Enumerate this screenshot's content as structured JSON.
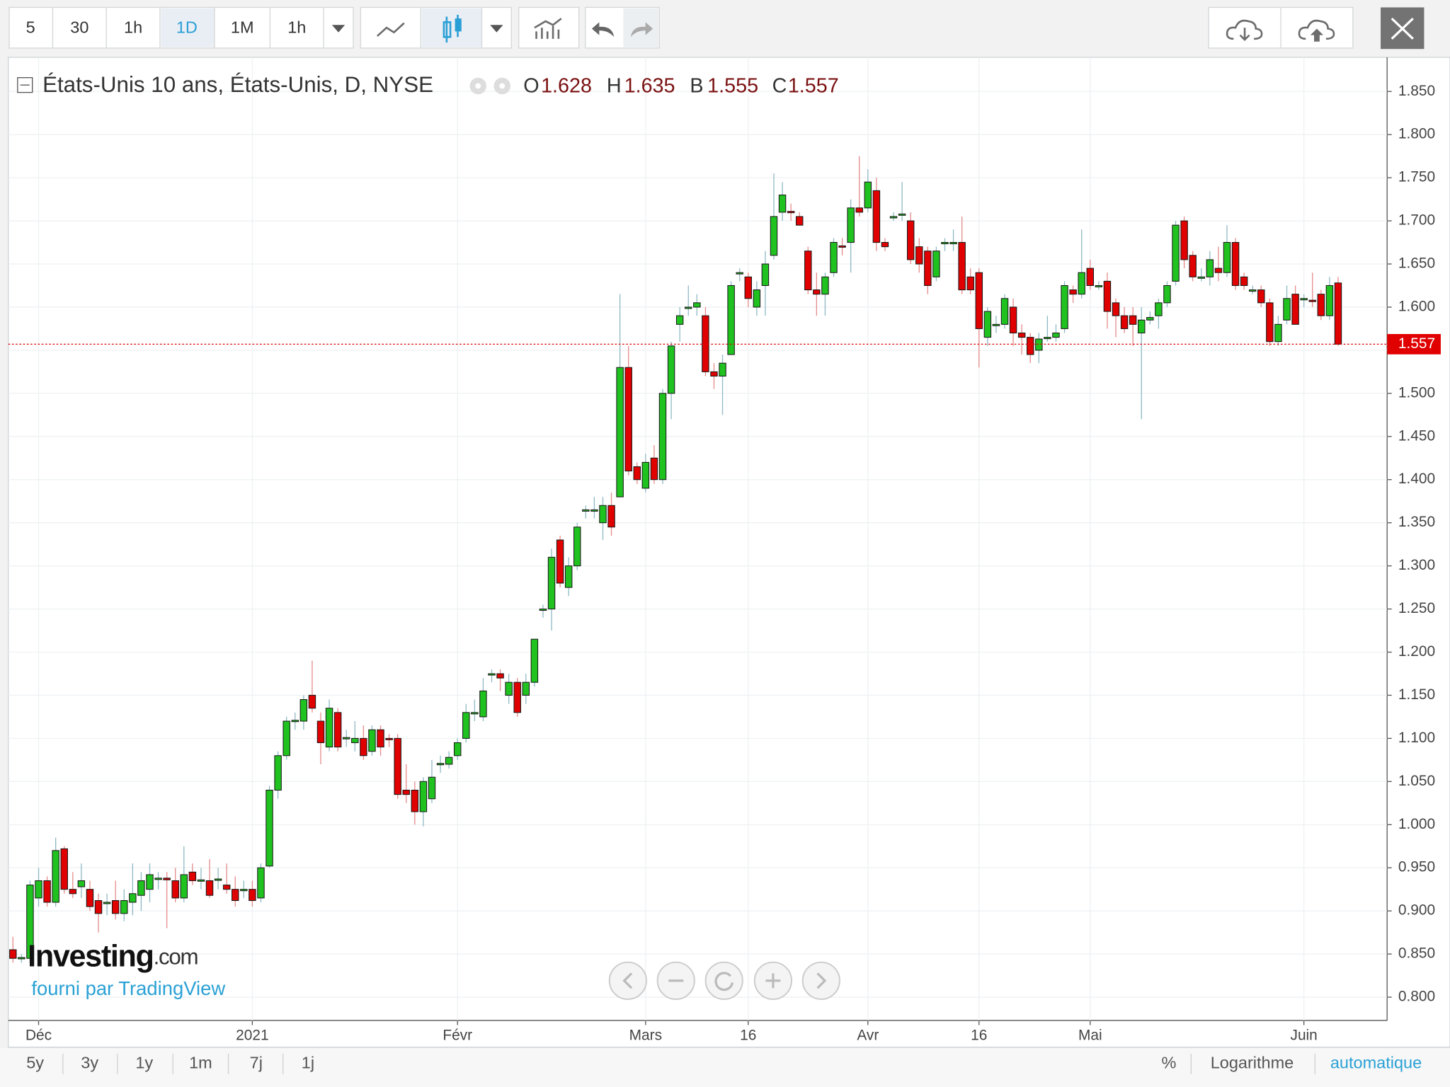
{
  "toolbar": {
    "intervals": [
      "5",
      "30",
      "1h",
      "1D",
      "1M",
      "1h"
    ]
  },
  "legend": {
    "title": "États-Unis 10 ans, États-Unis, D, NYSE",
    "ohlc": [
      {
        "label": "O",
        "value": 1.628
      },
      {
        "label": "H",
        "value": 1.635
      },
      {
        "label": "B",
        "value": 1.555
      },
      {
        "label": "C",
        "value": 1.557
      }
    ]
  },
  "branding": {
    "logo": "Investing",
    "logo_suffix": ".com",
    "credit": "fourni par TradingView"
  },
  "bottom_bar": {
    "ranges": [
      "5y",
      "3y",
      "1y",
      "1m",
      "7j",
      "1j"
    ],
    "options": [
      "%",
      "Logarithme",
      "automatique"
    ]
  },
  "chart_data": {
    "type": "candlestick",
    "up_color": "#1fc21f",
    "down_color": "#e00000",
    "grid": true,
    "ylim": [
      0.773,
      1.8896
    ],
    "yticks": [
      {
        "value": 0.8,
        "label": "0.800"
      },
      {
        "value": 0.85,
        "label": "0.850"
      },
      {
        "value": 0.9,
        "label": "0.900"
      },
      {
        "value": 0.95,
        "label": "0.950"
      },
      {
        "value": 1.0,
        "label": "1.000"
      },
      {
        "value": 1.05,
        "label": "1.050"
      },
      {
        "value": 1.1,
        "label": "1.100"
      },
      {
        "value": 1.15,
        "label": "1.150"
      },
      {
        "value": 1.2,
        "label": "1.200"
      },
      {
        "value": 1.25,
        "label": "1.250"
      },
      {
        "value": 1.3,
        "label": "1.300"
      },
      {
        "value": 1.35,
        "label": "1.350"
      },
      {
        "value": 1.4,
        "label": "1.400"
      },
      {
        "value": 1.45,
        "label": "1.450"
      },
      {
        "value": 1.5,
        "label": "1.500"
      },
      {
        "value": 1.55,
        "label": "1.550"
      },
      {
        "value": 1.6,
        "label": "1.600"
      },
      {
        "value": 1.65,
        "label": "1.650"
      },
      {
        "value": 1.7,
        "label": "1.700"
      },
      {
        "value": 1.75,
        "label": "1.750"
      },
      {
        "value": 1.8,
        "label": "1.800"
      },
      {
        "value": 1.85,
        "label": "1.850"
      }
    ],
    "last_price": 1.557,
    "categories": [
      null,
      null,
      null,
      "Déc",
      null,
      null,
      null,
      null,
      null,
      null,
      null,
      null,
      null,
      null,
      null,
      null,
      null,
      null,
      null,
      null,
      null,
      null,
      null,
      null,
      null,
      null,
      null,
      null,
      "2021",
      null,
      null,
      null,
      null,
      null,
      null,
      null,
      null,
      null,
      null,
      null,
      null,
      null,
      null,
      null,
      null,
      null,
      null,
      null,
      null,
      null,
      null,
      null,
      "Févr",
      null,
      null,
      null,
      null,
      null,
      null,
      null,
      null,
      null,
      null,
      null,
      null,
      null,
      null,
      null,
      null,
      null,
      null,
      null,
      null,
      null,
      "Mars",
      null,
      null,
      null,
      null,
      null,
      null,
      null,
      null,
      null,
      null,
      null,
      "16",
      null,
      null,
      null,
      null,
      null,
      null,
      null,
      null,
      null,
      null,
      null,
      null,
      null,
      "Avr",
      null,
      null,
      null,
      null,
      null,
      null,
      null,
      null,
      null,
      null,
      null,
      null,
      "16",
      null,
      null,
      null,
      null,
      null,
      null,
      null,
      null,
      null,
      null,
      null,
      null,
      "Mai",
      null,
      null,
      null,
      null,
      null,
      null,
      null,
      null,
      null,
      null,
      null,
      null,
      null,
      null,
      null,
      null,
      null,
      null,
      null,
      null,
      null,
      null,
      null,
      null,
      "Juin",
      null,
      null,
      null
    ],
    "ohlc": [
      [
        0.855,
        0.87,
        0.84,
        0.845
      ],
      [
        0.845,
        0.85,
        0.84,
        0.846
      ],
      [
        0.845,
        0.935,
        0.84,
        0.93
      ],
      [
        0.915,
        0.95,
        0.905,
        0.935
      ],
      [
        0.935,
        0.94,
        0.905,
        0.91
      ],
      [
        0.91,
        0.985,
        0.905,
        0.97
      ],
      [
        0.972,
        0.975,
        0.92,
        0.925
      ],
      [
        0.925,
        0.945,
        0.915,
        0.92
      ],
      [
        0.928,
        0.955,
        0.915,
        0.935
      ],
      [
        0.925,
        0.935,
        0.9,
        0.905
      ],
      [
        0.912,
        0.92,
        0.875,
        0.897
      ],
      [
        0.909,
        0.92,
        0.895,
        0.91
      ],
      [
        0.912,
        0.935,
        0.89,
        0.897
      ],
      [
        0.897,
        0.925,
        0.888,
        0.912
      ],
      [
        0.91,
        0.955,
        0.895,
        0.92
      ],
      [
        0.918,
        0.945,
        0.9,
        0.935
      ],
      [
        0.925,
        0.955,
        0.91,
        0.942
      ],
      [
        0.937,
        0.945,
        0.925,
        0.938
      ],
      [
        0.938,
        0.945,
        0.88,
        0.936
      ],
      [
        0.935,
        0.95,
        0.91,
        0.915
      ],
      [
        0.915,
        0.975,
        0.91,
        0.942
      ],
      [
        0.945,
        0.955,
        0.93,
        0.935
      ],
      [
        0.935,
        0.95,
        0.925,
        0.936
      ],
      [
        0.935,
        0.96,
        0.915,
        0.918
      ],
      [
        0.936,
        0.95,
        0.925,
        0.937
      ],
      [
        0.93,
        0.955,
        0.92,
        0.925
      ],
      [
        0.925,
        0.94,
        0.905,
        0.912
      ],
      [
        0.924,
        0.935,
        0.915,
        0.925
      ],
      [
        0.925,
        0.935,
        0.905,
        0.912
      ],
      [
        0.915,
        0.955,
        0.91,
        0.95
      ],
      [
        0.952,
        1.045,
        0.95,
        1.04
      ],
      [
        1.04,
        1.085,
        1.03,
        1.08
      ],
      [
        1.08,
        1.125,
        1.075,
        1.12
      ],
      [
        1.12,
        1.13,
        1.11,
        1.121
      ],
      [
        1.12,
        1.15,
        1.11,
        1.145
      ],
      [
        1.15,
        1.19,
        1.13,
        1.135
      ],
      [
        1.12,
        1.13,
        1.07,
        1.095
      ],
      [
        1.09,
        1.145,
        1.085,
        1.135
      ],
      [
        1.13,
        1.135,
        1.085,
        1.09
      ],
      [
        1.1,
        1.11,
        1.09,
        1.101
      ],
      [
        1.095,
        1.12,
        1.085,
        1.1
      ],
      [
        1.1,
        1.115,
        1.075,
        1.08
      ],
      [
        1.085,
        1.115,
        1.08,
        1.11
      ],
      [
        1.11,
        1.115,
        1.08,
        1.09
      ],
      [
        1.1,
        1.105,
        1.09,
        1.099
      ],
      [
        1.1,
        1.105,
        1.03,
        1.035
      ],
      [
        1.04,
        1.07,
        1.025,
        1.035
      ],
      [
        1.04,
        1.05,
        1.0,
        1.015
      ],
      [
        1.015,
        1.055,
        0.998,
        1.05
      ],
      [
        1.03,
        1.075,
        1.025,
        1.055
      ],
      [
        1.07,
        1.08,
        1.06,
        1.071
      ],
      [
        1.07,
        1.085,
        1.065,
        1.078
      ],
      [
        1.08,
        1.1,
        1.075,
        1.095
      ],
      [
        1.1,
        1.14,
        1.095,
        1.13
      ],
      [
        1.129,
        1.145,
        1.12,
        1.13
      ],
      [
        1.125,
        1.17,
        1.12,
        1.155
      ],
      [
        1.174,
        1.18,
        1.165,
        1.175
      ],
      [
        1.175,
        1.18,
        1.155,
        1.17
      ],
      [
        1.15,
        1.175,
        1.14,
        1.165
      ],
      [
        1.165,
        1.17,
        1.125,
        1.13
      ],
      [
        1.15,
        1.175,
        1.14,
        1.165
      ],
      [
        1.165,
        1.215,
        1.16,
        1.215
      ],
      [
        1.249,
        1.255,
        1.24,
        1.25
      ],
      [
        1.25,
        1.32,
        1.225,
        1.31
      ],
      [
        1.33,
        1.335,
        1.275,
        1.28
      ],
      [
        1.275,
        1.31,
        1.265,
        1.3
      ],
      [
        1.3,
        1.35,
        1.295,
        1.345
      ],
      [
        1.364,
        1.37,
        1.355,
        1.365
      ],
      [
        1.364,
        1.38,
        1.355,
        1.365
      ],
      [
        1.35,
        1.38,
        1.33,
        1.37
      ],
      [
        1.37,
        1.385,
        1.335,
        1.345
      ],
      [
        1.38,
        1.615,
        1.38,
        1.53
      ],
      [
        1.53,
        1.555,
        1.405,
        1.41
      ],
      [
        1.415,
        1.42,
        1.395,
        1.4
      ],
      [
        1.39,
        1.43,
        1.385,
        1.42
      ],
      [
        1.425,
        1.44,
        1.395,
        1.4
      ],
      [
        1.4,
        1.505,
        1.395,
        1.5
      ],
      [
        1.5,
        1.56,
        1.47,
        1.555
      ],
      [
        1.58,
        1.6,
        1.56,
        1.59
      ],
      [
        1.599,
        1.625,
        1.59,
        1.6
      ],
      [
        1.6,
        1.615,
        1.59,
        1.605
      ],
      [
        1.59,
        1.6,
        1.52,
        1.525
      ],
      [
        1.525,
        1.535,
        1.505,
        1.52
      ],
      [
        1.52,
        1.545,
        1.475,
        1.535
      ],
      [
        1.545,
        1.63,
        1.545,
        1.625
      ],
      [
        1.639,
        1.645,
        1.63,
        1.64
      ],
      [
        1.635,
        1.64,
        1.6,
        1.61
      ],
      [
        1.6,
        1.63,
        1.59,
        1.62
      ],
      [
        1.625,
        1.665,
        1.59,
        1.65
      ],
      [
        1.66,
        1.755,
        1.655,
        1.705
      ],
      [
        1.71,
        1.745,
        1.7,
        1.73
      ],
      [
        1.711,
        1.72,
        1.7,
        1.71
      ],
      [
        1.705,
        1.71,
        1.695,
        1.695
      ],
      [
        1.665,
        1.67,
        1.615,
        1.62
      ],
      [
        1.62,
        1.64,
        1.59,
        1.615
      ],
      [
        1.615,
        1.64,
        1.59,
        1.635
      ],
      [
        1.64,
        1.68,
        1.635,
        1.675
      ],
      [
        1.671,
        1.68,
        1.66,
        1.67
      ],
      [
        1.675,
        1.725,
        1.64,
        1.715
      ],
      [
        1.715,
        1.775,
        1.705,
        1.71
      ],
      [
        1.715,
        1.76,
        1.71,
        1.745
      ],
      [
        1.735,
        1.75,
        1.665,
        1.675
      ],
      [
        1.675,
        1.68,
        1.665,
        1.67
      ],
      [
        1.704,
        1.71,
        1.7,
        1.705
      ],
      [
        1.707,
        1.745,
        1.7,
        1.708
      ],
      [
        1.7,
        1.71,
        1.65,
        1.655
      ],
      [
        1.67,
        1.68,
        1.64,
        1.65
      ],
      [
        1.665,
        1.67,
        1.615,
        1.625
      ],
      [
        1.635,
        1.67,
        1.63,
        1.665
      ],
      [
        1.674,
        1.68,
        1.665,
        1.675
      ],
      [
        1.674,
        1.69,
        1.665,
        1.675
      ],
      [
        1.675,
        1.705,
        1.615,
        1.62
      ],
      [
        1.635,
        1.645,
        1.615,
        1.62
      ],
      [
        1.64,
        1.645,
        1.53,
        1.575
      ],
      [
        1.565,
        1.6,
        1.555,
        1.595
      ],
      [
        1.579,
        1.59,
        1.57,
        1.58
      ],
      [
        1.58,
        1.615,
        1.575,
        1.61
      ],
      [
        1.6,
        1.61,
        1.555,
        1.57
      ],
      [
        1.57,
        1.58,
        1.545,
        1.565
      ],
      [
        1.565,
        1.57,
        1.535,
        1.545
      ],
      [
        1.55,
        1.57,
        1.535,
        1.563
      ],
      [
        1.564,
        1.59,
        1.56,
        1.565
      ],
      [
        1.565,
        1.58,
        1.56,
        1.57
      ],
      [
        1.575,
        1.63,
        1.57,
        1.625
      ],
      [
        1.62,
        1.625,
        1.605,
        1.615
      ],
      [
        1.615,
        1.69,
        1.61,
        1.64
      ],
      [
        1.645,
        1.655,
        1.62,
        1.625
      ],
      [
        1.624,
        1.63,
        1.62,
        1.625
      ],
      [
        1.63,
        1.64,
        1.575,
        1.595
      ],
      [
        1.605,
        1.61,
        1.565,
        1.59
      ],
      [
        1.59,
        1.6,
        1.57,
        1.575
      ],
      [
        1.59,
        1.6,
        1.555,
        1.58
      ],
      [
        1.57,
        1.6,
        1.47,
        1.585
      ],
      [
        1.585,
        1.595,
        1.58,
        1.588
      ],
      [
        1.59,
        1.61,
        1.575,
        1.605
      ],
      [
        1.605,
        1.63,
        1.6,
        1.625
      ],
      [
        1.63,
        1.7,
        1.625,
        1.695
      ],
      [
        1.7,
        1.705,
        1.645,
        1.655
      ],
      [
        1.66,
        1.665,
        1.63,
        1.635
      ],
      [
        1.634,
        1.645,
        1.63,
        1.635
      ],
      [
        1.635,
        1.665,
        1.625,
        1.655
      ],
      [
        1.645,
        1.67,
        1.63,
        1.64
      ],
      [
        1.64,
        1.695,
        1.635,
        1.675
      ],
      [
        1.675,
        1.68,
        1.62,
        1.625
      ],
      [
        1.635,
        1.64,
        1.62,
        1.625
      ],
      [
        1.619,
        1.625,
        1.615,
        1.62
      ],
      [
        1.62,
        1.625,
        1.6,
        1.605
      ],
      [
        1.605,
        1.61,
        1.555,
        1.56
      ],
      [
        1.56,
        1.59,
        1.555,
        1.58
      ],
      [
        1.585,
        1.625,
        1.58,
        1.61
      ],
      [
        1.615,
        1.625,
        1.58,
        1.58
      ],
      [
        1.609,
        1.615,
        1.6,
        1.61
      ],
      [
        1.608,
        1.64,
        1.6,
        1.607
      ],
      [
        1.615,
        1.62,
        1.585,
        1.59
      ],
      [
        1.59,
        1.635,
        1.585,
        1.625
      ],
      [
        1.628,
        1.635,
        1.555,
        1.557
      ]
    ]
  }
}
